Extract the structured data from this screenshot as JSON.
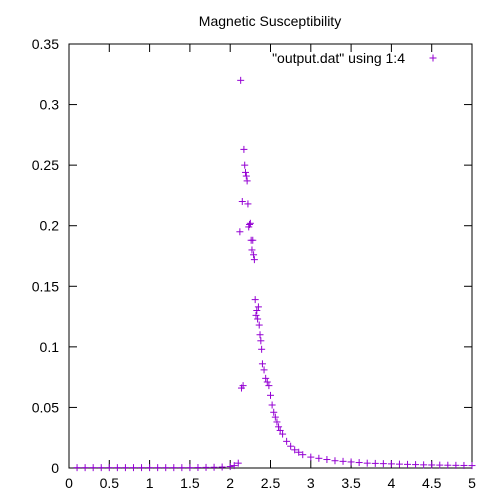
{
  "chart_data": {
    "type": "scatter",
    "title": "Magnetic Susceptibility",
    "xlabel": "",
    "ylabel": "",
    "xlim": [
      0,
      5
    ],
    "ylim": [
      0,
      0.35
    ],
    "x_ticks": [
      "0",
      "0.5",
      "1",
      "1.5",
      "2",
      "2.5",
      "3",
      "3.5",
      "4",
      "4.5",
      "5"
    ],
    "y_ticks": [
      "0",
      "0.05",
      "0.1",
      "0.15",
      "0.2",
      "0.25",
      "0.3",
      "0.35"
    ],
    "grid": false,
    "legend_position": "top-right",
    "series": [
      {
        "name": "\"output.dat\" using 1:4",
        "marker": "plus",
        "color": "#9400d3",
        "x": [
          0.1,
          0.2,
          0.3,
          0.4,
          0.5,
          0.6,
          0.7,
          0.8,
          0.9,
          1.0,
          1.1,
          1.2,
          1.3,
          1.4,
          1.5,
          1.6,
          1.7,
          1.8,
          1.9,
          2.0,
          2.05,
          2.1,
          2.12,
          2.13,
          2.14,
          2.15,
          2.16,
          2.17,
          2.18,
          2.19,
          2.2,
          2.21,
          2.22,
          2.23,
          2.24,
          2.25,
          2.26,
          2.27,
          2.28,
          2.29,
          2.3,
          2.31,
          2.32,
          2.33,
          2.34,
          2.35,
          2.36,
          2.37,
          2.38,
          2.39,
          2.4,
          2.42,
          2.44,
          2.46,
          2.48,
          2.5,
          2.52,
          2.54,
          2.56,
          2.58,
          2.6,
          2.62,
          2.65,
          2.7,
          2.75,
          2.8,
          2.85,
          2.9,
          3.0,
          3.1,
          3.2,
          3.3,
          3.4,
          3.5,
          3.6,
          3.7,
          3.8,
          3.9,
          4.0,
          4.1,
          4.2,
          4.3,
          4.4,
          4.5,
          4.6,
          4.7,
          4.8,
          4.9,
          5.0
        ],
        "y": [
          0.0003,
          0.0003,
          0.0003,
          0.0003,
          0.0003,
          0.0003,
          0.0003,
          0.0003,
          0.0003,
          0.0003,
          0.0003,
          0.0003,
          0.0003,
          0.0003,
          0.0003,
          0.0004,
          0.0005,
          0.0006,
          0.0008,
          0.0012,
          0.002,
          0.004,
          0.195,
          0.32,
          0.066,
          0.22,
          0.068,
          0.263,
          0.25,
          0.244,
          0.241,
          0.237,
          0.218,
          0.199,
          0.201,
          0.202,
          0.188,
          0.18,
          0.188,
          0.176,
          0.172,
          0.139,
          0.126,
          0.13,
          0.123,
          0.133,
          0.118,
          0.11,
          0.105,
          0.098,
          0.086,
          0.081,
          0.074,
          0.071,
          0.068,
          0.06,
          0.052,
          0.046,
          0.042,
          0.038,
          0.034,
          0.031,
          0.028,
          0.022,
          0.018,
          0.015,
          0.013,
          0.011,
          0.009,
          0.008,
          0.007,
          0.006,
          0.0055,
          0.005,
          0.0045,
          0.004,
          0.0038,
          0.0036,
          0.0034,
          0.0032,
          0.003,
          0.0028,
          0.0026,
          0.0025,
          0.0024,
          0.0023,
          0.0022,
          0.0021,
          0.002
        ]
      }
    ]
  }
}
